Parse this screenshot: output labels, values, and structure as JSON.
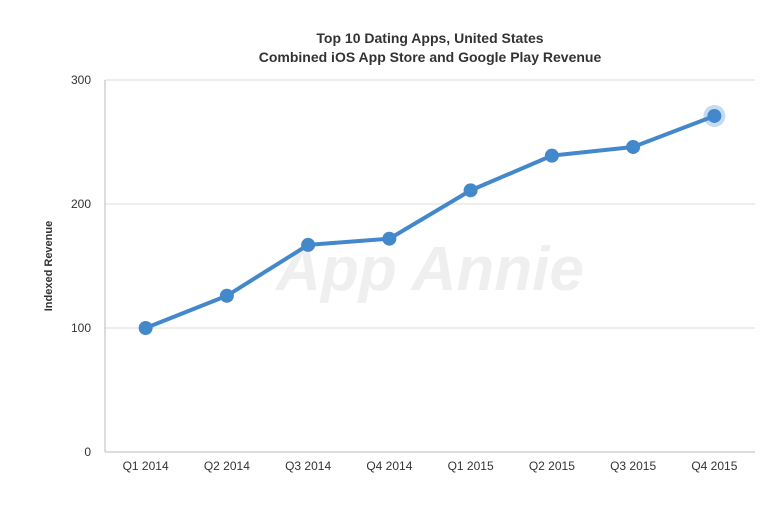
{
  "chart_data": {
    "type": "line",
    "title": "Top 10 Dating Apps, United States",
    "subtitle": "Combined iOS App Store and Google Play Revenue",
    "xlabel": "",
    "ylabel": "Indexed Revenue",
    "ylim": [
      0,
      300
    ],
    "yticks": [
      0,
      100,
      200,
      300
    ],
    "categories": [
      "Q1 2014",
      "Q2 2014",
      "Q3 2014",
      "Q4 2014",
      "Q1 2015",
      "Q2 2015",
      "Q3 2015",
      "Q4 2015"
    ],
    "series": [
      {
        "values": [
          100,
          126,
          167,
          172,
          211,
          239,
          246,
          271
        ],
        "color": "#4488cc"
      }
    ],
    "highlighted_point": "Q4 2015",
    "grid": "horizontal",
    "watermark": "App Annie"
  }
}
